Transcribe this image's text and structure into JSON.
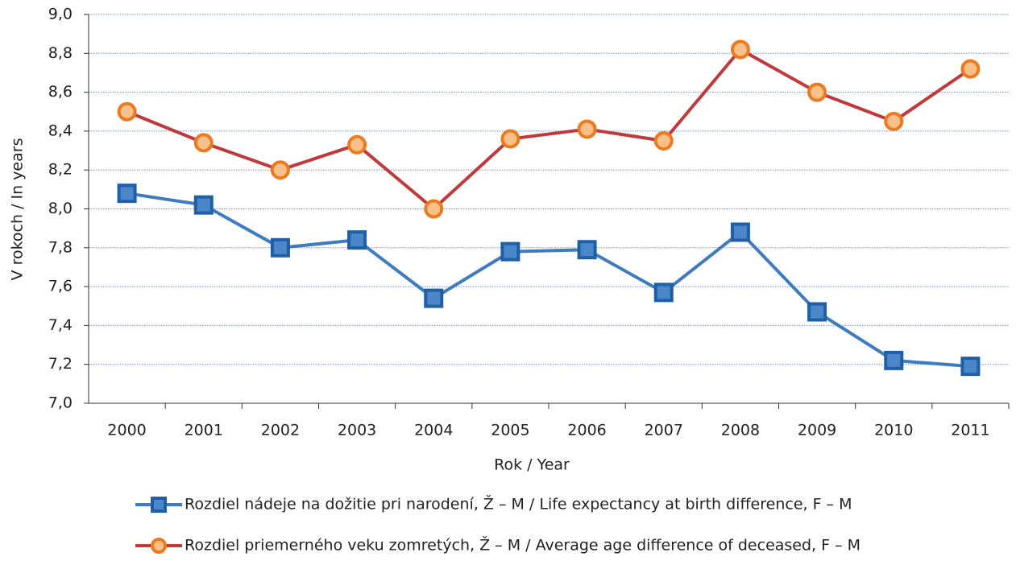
{
  "chart_data": {
    "type": "line",
    "y_label": "V rokoch / In years",
    "x_label": "Rok / Year",
    "categories": [
      "2000",
      "2001",
      "2002",
      "2003",
      "2004",
      "2005",
      "2006",
      "2007",
      "2008",
      "2009",
      "2010",
      "2011"
    ],
    "series": [
      {
        "name": "Rozdiel nádeje na dožitie pri narodení, Ž – M / Life expectancy at birth difference, F – M",
        "color": "#3f7bbf",
        "marker": "square",
        "values": [
          8.08,
          8.02,
          7.8,
          7.84,
          7.54,
          7.78,
          7.79,
          7.57,
          7.88,
          7.47,
          7.22,
          7.19
        ]
      },
      {
        "name": "Rozdiel priemerného veku zomretých, Ž – M / Average age difference of deceased, F – M",
        "color": "#c0393b",
        "marker": "circle",
        "values": [
          8.5,
          8.34,
          8.2,
          8.33,
          8.0,
          8.36,
          8.41,
          8.35,
          8.82,
          8.6,
          8.45,
          8.72
        ]
      }
    ],
    "ylim": [
      7.0,
      9.0
    ],
    "yticks": [
      {
        "value": 7.0,
        "label": "7,0"
      },
      {
        "value": 7.2,
        "label": "7,2"
      },
      {
        "value": 7.4,
        "label": "7,4"
      },
      {
        "value": 7.6,
        "label": "7,6"
      },
      {
        "value": 7.8,
        "label": "7,8"
      },
      {
        "value": 8.0,
        "label": "8,0"
      },
      {
        "value": 8.2,
        "label": "8,2"
      },
      {
        "value": 8.4,
        "label": "8,4"
      },
      {
        "value": 8.6,
        "label": "8,6"
      },
      {
        "value": 8.8,
        "label": "8,8"
      },
      {
        "value": 9.0,
        "label": "9,0"
      }
    ],
    "grid": true
  }
}
